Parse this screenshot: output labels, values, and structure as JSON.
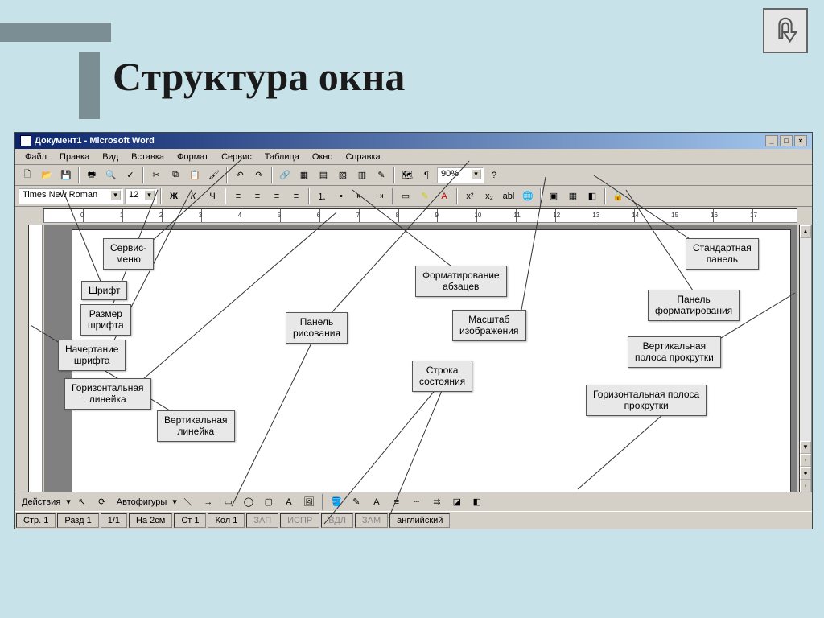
{
  "slide": {
    "title": "Структура окна"
  },
  "back_button": {
    "tooltip": "Назад"
  },
  "word": {
    "titlebar": "Документ1 - Microsoft Word",
    "menu": [
      "Файл",
      "Правка",
      "Вид",
      "Вставка",
      "Формат",
      "Сервис",
      "Таблица",
      "Окно",
      "Справка"
    ],
    "font_name": "Times New Roman",
    "font_size": "12",
    "zoom": "90%",
    "bold": "Ж",
    "italic": "К",
    "underline": "Ч",
    "draw_actions": "Действия",
    "autoshapes": "Автофигуры",
    "status": {
      "page": "Стр. 1",
      "section": "Разд 1",
      "pages": "1/1",
      "at": "На 2см",
      "line": "Ст 1",
      "col": "Кол 1",
      "rec": "ЗАП",
      "trk": "ИСПР",
      "ext": "ВДЛ",
      "ovr": "ЗАМ",
      "lang": "английский"
    }
  },
  "labels": {
    "service_menu": "Сервис-\nменю",
    "font": "Шрифт",
    "font_size": "Размер\nшрифта",
    "font_style": "Начертание\nшрифта",
    "hruler": "Горизонтальная\nлинейка",
    "vruler": "Вертикальная\nлинейка",
    "draw_panel": "Панель\nрисования",
    "para_format": "Форматирование\nабзацев",
    "zoom_label": "Масштаб\nизображения",
    "status_row": "Строка\nсостояния",
    "std_panel": "Стандартная\nпанель",
    "fmt_panel": "Панель\nформатирования",
    "vscroll": "Вертикальная\nполоса прокрутки",
    "hscroll": "Горизонтальная  полоса\nпрокрутки"
  },
  "colors": {
    "bg": "#c7e3e9",
    "panel": "#d4d0c8",
    "title_grad_a": "#0a236a",
    "title_grad_b": "#a6caf0"
  }
}
